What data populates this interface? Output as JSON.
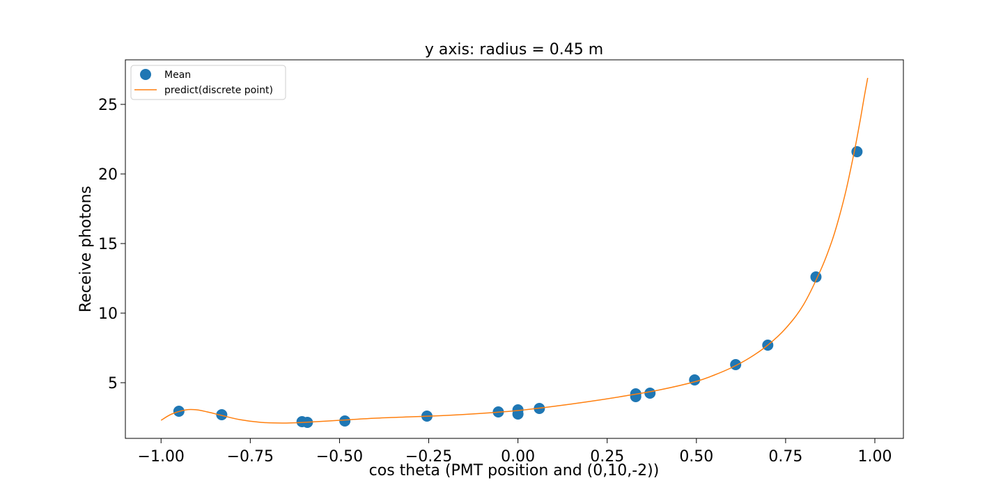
{
  "chart_data": {
    "type": "scatter",
    "title": "y axis: radius = 0.45 m",
    "xlabel": "cos theta (PMT position and (0,10,-2))",
    "ylabel": "Receive photons",
    "xlim": [
      -1.1,
      1.08
    ],
    "ylim": [
      1.0,
      28.2
    ],
    "xticks": [
      -1.0,
      -0.75,
      -0.5,
      -0.25,
      0.0,
      0.25,
      0.5,
      0.75,
      1.0
    ],
    "xtick_labels": [
      "−1.00",
      "−0.75",
      "−0.50",
      "−0.25",
      "0.00",
      "0.25",
      "0.50",
      "0.75",
      "1.00"
    ],
    "yticks": [
      5,
      10,
      15,
      20,
      25
    ],
    "ytick_labels": [
      "5",
      "10",
      "15",
      "20",
      "25"
    ],
    "grid": false,
    "legend_position": "top-left",
    "series": [
      {
        "name": "Mean",
        "kind": "scatter",
        "color": "#1f77b4",
        "x": [
          -0.95,
          -0.83,
          -0.605,
          -0.59,
          -0.485,
          -0.255,
          -0.055,
          0.0,
          0.0,
          0.06,
          0.33,
          0.33,
          0.37,
          0.495,
          0.61,
          0.7,
          0.835,
          0.95
        ],
        "y": [
          2.95,
          2.7,
          2.2,
          2.15,
          2.25,
          2.6,
          2.9,
          3.05,
          2.75,
          3.15,
          4.0,
          4.2,
          4.25,
          5.2,
          6.3,
          7.7,
          12.6,
          21.6
        ]
      },
      {
        "name": "predict(discrete point)",
        "kind": "line",
        "color": "#ff7f0e",
        "x": [
          -1.0,
          -0.97,
          -0.93,
          -0.9,
          -0.87,
          -0.83,
          -0.78,
          -0.72,
          -0.66,
          -0.6,
          -0.5,
          -0.4,
          -0.3,
          -0.2,
          -0.1,
          0.0,
          0.1,
          0.2,
          0.3,
          0.4,
          0.5,
          0.55,
          0.6,
          0.65,
          0.7,
          0.75,
          0.8,
          0.85,
          0.88,
          0.9,
          0.92,
          0.94,
          0.95,
          0.96,
          0.97,
          0.98
        ],
        "y": [
          2.3,
          2.75,
          3.05,
          3.05,
          2.9,
          2.65,
          2.35,
          2.15,
          2.1,
          2.15,
          2.3,
          2.45,
          2.55,
          2.65,
          2.8,
          3.0,
          3.3,
          3.65,
          4.05,
          4.5,
          5.1,
          5.55,
          6.1,
          6.8,
          7.7,
          8.9,
          10.6,
          13.2,
          15.2,
          16.9,
          18.9,
          21.3,
          22.6,
          24.0,
          25.5,
          26.9
        ]
      }
    ]
  }
}
